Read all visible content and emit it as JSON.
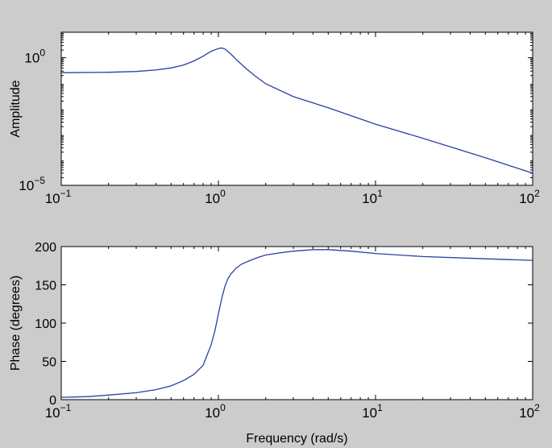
{
  "chart_data": [
    {
      "type": "line",
      "name": "amplitude-plot",
      "xlabel": "",
      "ylabel": "Amplitude",
      "x_scale": "log",
      "y_scale": "log",
      "xlim": [
        0.1,
        100
      ],
      "ylim": [
        1e-05,
        10
      ],
      "xticks": [
        {
          "value": 0.1,
          "base": "10",
          "exp": "−1"
        },
        {
          "value": 1,
          "base": "10",
          "exp": "0"
        },
        {
          "value": 10,
          "base": "10",
          "exp": "1"
        },
        {
          "value": 100,
          "base": "10",
          "exp": "2"
        }
      ],
      "yticks": [
        {
          "value": 1e-05,
          "base": "10",
          "exp": "−5"
        },
        {
          "value": 1,
          "base": "10",
          "exp": "0"
        }
      ],
      "grid": false,
      "line_color": "#2b3fa0",
      "series": [
        {
          "x": [
            0.1,
            0.2,
            0.3,
            0.4,
            0.5,
            0.6,
            0.7,
            0.8,
            0.9,
            1.0,
            1.05,
            1.1,
            1.2,
            1.3,
            1.5,
            1.7,
            2.0,
            3.0,
            5.0,
            10,
            20,
            50,
            100
          ],
          "y": [
            0.26,
            0.27,
            0.29,
            0.33,
            0.4,
            0.52,
            0.75,
            1.15,
            1.8,
            2.3,
            2.4,
            2.2,
            1.4,
            0.85,
            0.38,
            0.2,
            0.095,
            0.03,
            0.011,
            0.0025,
            0.0007,
            0.00012,
            3e-05
          ]
        }
      ]
    },
    {
      "type": "line",
      "name": "phase-plot",
      "xlabel": "Frequency (rad/s)",
      "ylabel": "Phase (degrees)",
      "x_scale": "log",
      "y_scale": "linear",
      "xlim": [
        0.1,
        100
      ],
      "ylim": [
        0,
        200
      ],
      "xticks": [
        {
          "value": 0.1,
          "base": "10",
          "exp": "−1"
        },
        {
          "value": 1,
          "base": "10",
          "exp": "0"
        },
        {
          "value": 10,
          "base": "10",
          "exp": "1"
        },
        {
          "value": 100,
          "base": "10",
          "exp": "2"
        }
      ],
      "yticks": [
        {
          "value": 0,
          "label": "0"
        },
        {
          "value": 50,
          "label": "50"
        },
        {
          "value": 100,
          "label": "100"
        },
        {
          "value": 150,
          "label": "150"
        },
        {
          "value": 200,
          "label": "200"
        }
      ],
      "grid": false,
      "line_color": "#2b3fa0",
      "series": [
        {
          "x": [
            0.1,
            0.15,
            0.2,
            0.3,
            0.4,
            0.5,
            0.6,
            0.7,
            0.8,
            0.9,
            0.95,
            1.0,
            1.05,
            1.1,
            1.15,
            1.2,
            1.3,
            1.4,
            1.6,
            1.8,
            2.0,
            2.5,
            3.0,
            4.0,
            5.0,
            7.0,
            10,
            20,
            50,
            100
          ],
          "y": [
            3,
            4,
            6,
            9,
            13,
            18,
            25,
            33,
            45,
            72,
            90,
            112,
            132,
            148,
            158,
            164,
            172,
            177,
            182,
            186,
            189,
            192,
            194,
            196,
            196,
            194,
            191,
            187,
            184,
            182
          ]
        }
      ]
    }
  ]
}
